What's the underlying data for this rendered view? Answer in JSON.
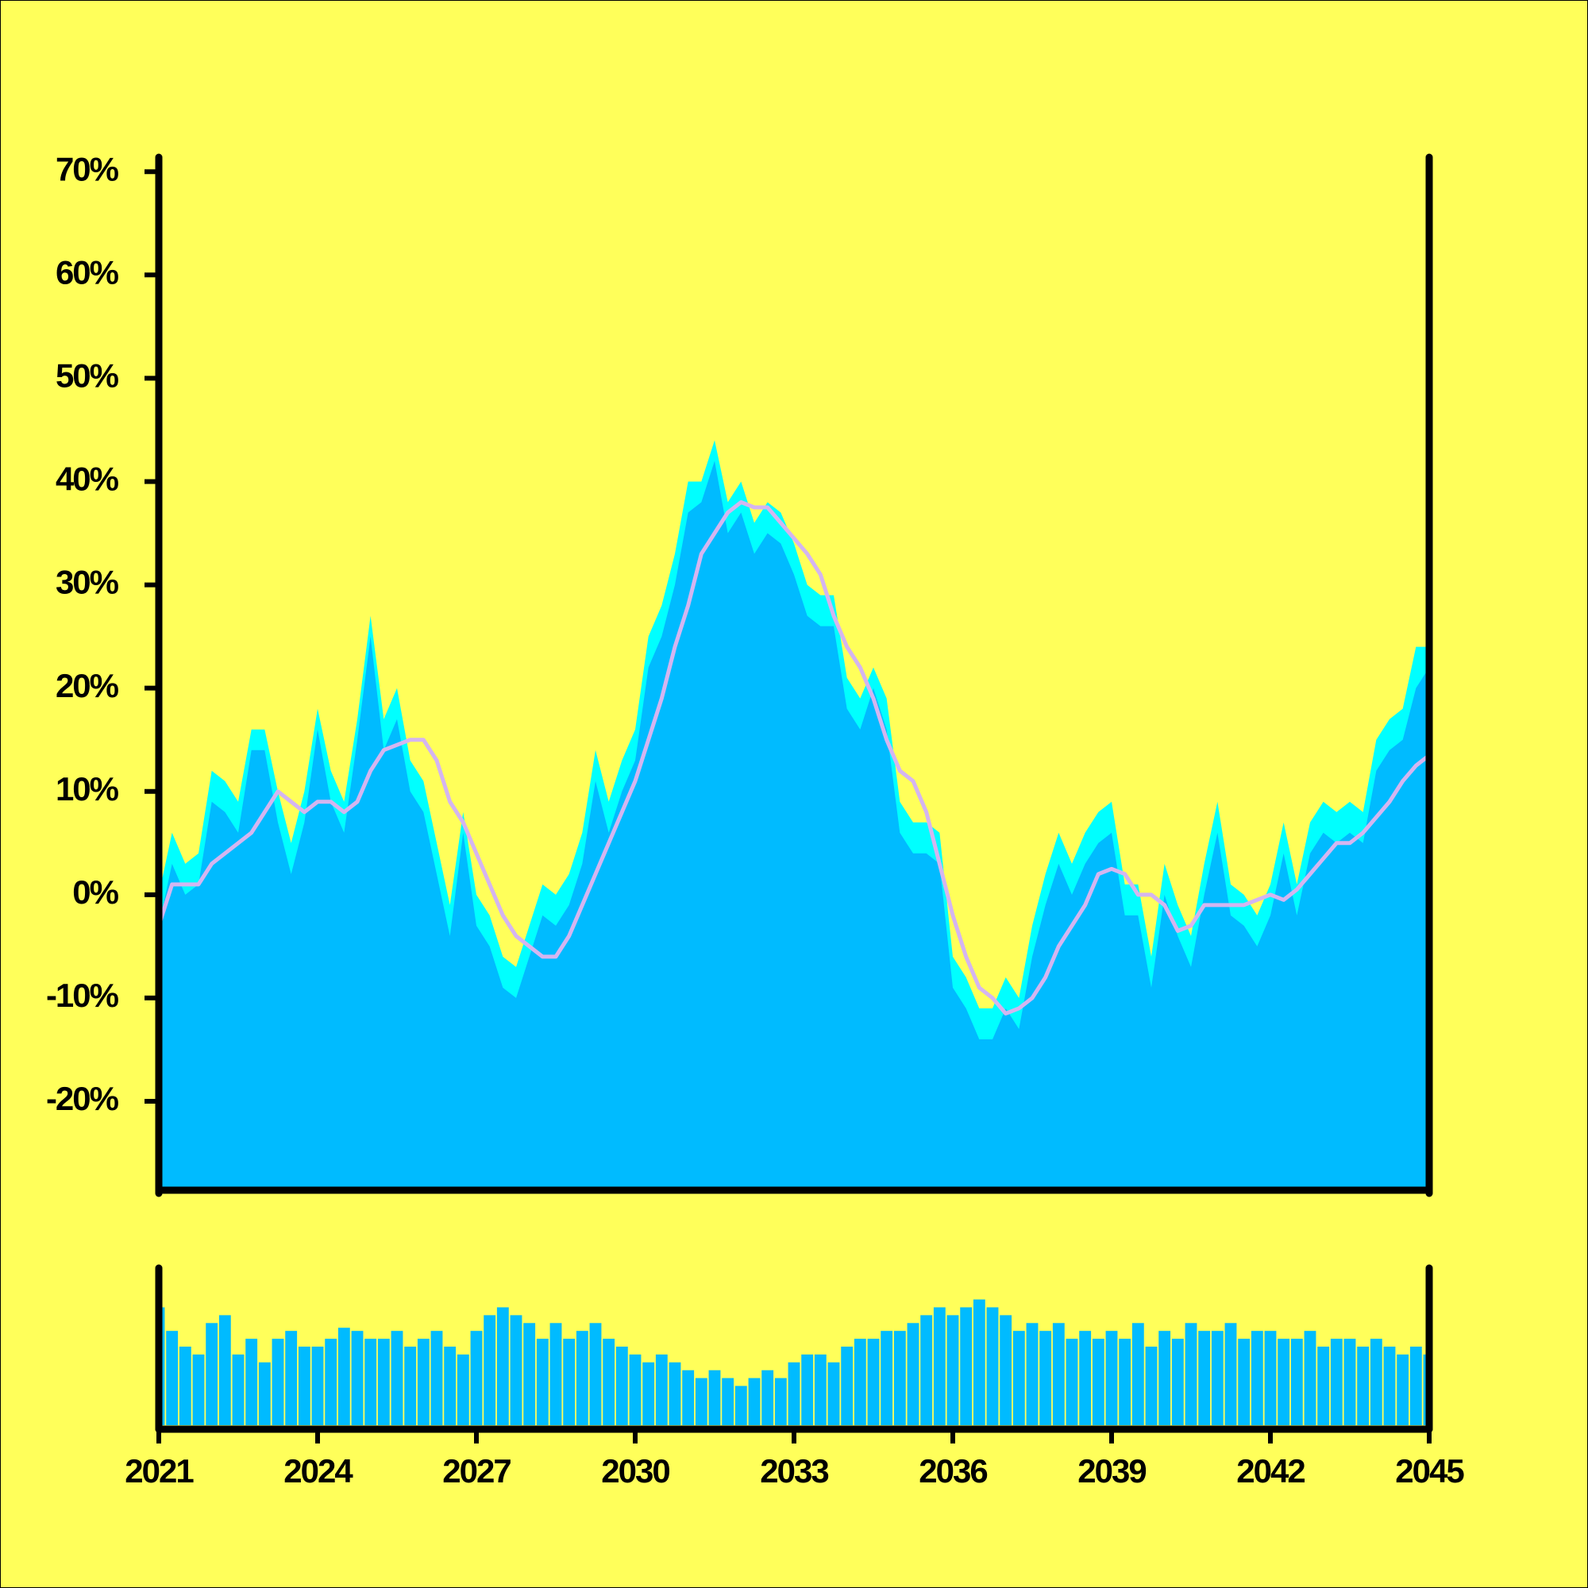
{
  "chart_data": [
    {
      "type": "area",
      "x": [
        2021,
        2021.25,
        2021.5,
        2021.75,
        2022,
        2022.25,
        2022.5,
        2022.75,
        2023,
        2023.25,
        2023.5,
        2023.75,
        2024,
        2024.25,
        2024.5,
        2024.75,
        2025,
        2025.25,
        2025.5,
        2025.75,
        2026,
        2026.25,
        2026.5,
        2026.75,
        2027,
        2027.25,
        2027.5,
        2027.75,
        2028,
        2028.25,
        2028.5,
        2028.75,
        2029,
        2029.25,
        2029.5,
        2029.75,
        2030,
        2030.25,
        2030.5,
        2030.75,
        2031,
        2031.25,
        2031.5,
        2031.75,
        2032,
        2032.25,
        2032.5,
        2032.75,
        2033,
        2033.25,
        2033.5,
        2033.75,
        2034,
        2034.25,
        2034.5,
        2034.75,
        2035,
        2035.25,
        2035.5,
        2035.75,
        2036,
        2036.25,
        2036.5,
        2036.75,
        2037,
        2037.25,
        2037.5,
        2037.75,
        2038,
        2038.25,
        2038.5,
        2038.75,
        2039,
        2039.25,
        2039.5,
        2039.75,
        2040,
        2040.25,
        2040.5,
        2040.75,
        2041,
        2041.25,
        2041.5,
        2041.75,
        2042,
        2042.25,
        2042.5,
        2042.75,
        2043,
        2043.25,
        2043.5,
        2043.75,
        2044,
        2044.25,
        2044.5,
        2044.75,
        2045
      ],
      "series": [
        {
          "type": "area",
          "color": "#00ffff",
          "values": [
            0,
            6,
            3,
            4,
            12,
            11,
            9,
            16,
            16,
            10,
            5,
            10,
            18,
            12,
            9,
            17,
            27,
            17,
            20,
            13,
            11,
            5,
            -1,
            8,
            0,
            -2,
            -6,
            -7,
            -3,
            1,
            0,
            2,
            6,
            14,
            9,
            13,
            16,
            25,
            28,
            33,
            40,
            40,
            44,
            38,
            40,
            36,
            38,
            37,
            34,
            30,
            29,
            29,
            21,
            19,
            22,
            19,
            9,
            7,
            7,
            6,
            -6,
            -8,
            -11,
            -11,
            -8,
            -10,
            -3,
            2,
            6,
            3,
            6,
            8,
            9,
            1,
            1,
            -6,
            3,
            -1,
            -4,
            3,
            9,
            1,
            0,
            -2,
            1,
            7,
            1,
            7,
            9,
            8,
            9,
            8,
            15,
            17,
            18,
            24,
            24
          ]
        },
        {
          "type": "area",
          "color": "#00bbff",
          "values": [
            -3,
            3,
            0,
            1,
            9,
            8,
            6,
            14,
            14,
            7,
            2,
            7,
            16,
            9,
            6,
            15,
            25,
            14,
            17,
            10,
            8,
            2,
            -4,
            6,
            -3,
            -5,
            -9,
            -10,
            -6,
            -2,
            -3,
            -1,
            3,
            11,
            6,
            10,
            13,
            22,
            25,
            30,
            37,
            38,
            42,
            35,
            37,
            33,
            35,
            34,
            31,
            27,
            26,
            26,
            18,
            16,
            20,
            16,
            6,
            4,
            4,
            3,
            -9,
            -11,
            -14,
            -14,
            -11,
            -13,
            -6,
            -1,
            3,
            0,
            3,
            5,
            6,
            -2,
            -2,
            -9,
            0,
            -4,
            -7,
            0,
            6,
            -2,
            -3,
            -5,
            -2,
            4,
            -2,
            4,
            6,
            5,
            6,
            5,
            12,
            14,
            15,
            20,
            22
          ]
        },
        {
          "type": "line",
          "color": "#d4b5f0",
          "values": [
            -3,
            1,
            1,
            1,
            3,
            4,
            5,
            6,
            8,
            10,
            9,
            8,
            9,
            9,
            8,
            9,
            12,
            14,
            14.5,
            15,
            15,
            13,
            9,
            7,
            4,
            1,
            -2,
            -4,
            -5,
            -6,
            -6,
            -4,
            -1,
            2,
            5,
            8,
            11,
            15,
            19,
            24,
            28,
            33,
            35,
            37,
            38,
            37.5,
            37.5,
            36,
            34.5,
            33,
            31,
            27,
            24,
            22,
            19,
            15,
            12,
            11,
            8,
            3,
            -2,
            -6,
            -9,
            -10,
            -11.5,
            -11,
            -10,
            -8,
            -5,
            -3,
            -1,
            2,
            2.5,
            2,
            0,
            0,
            -1,
            -3.5,
            -3,
            -1,
            -1,
            -1,
            -1,
            -0.5,
            0,
            -0.5,
            0.5,
            2,
            3.5,
            5,
            5,
            6,
            7.5,
            9,
            11,
            12.5,
            13.5
          ]
        }
      ],
      "xlim": [
        2021,
        2045
      ],
      "ylim": [
        -28.3,
        71.4
      ],
      "yticks": [
        {
          "value": -20,
          "label": "-20%"
        },
        {
          "value": -10,
          "label": "-10%"
        },
        {
          "value": 0,
          "label": "0%"
        },
        {
          "value": 10,
          "label": "10%"
        },
        {
          "value": 20,
          "label": "20%"
        },
        {
          "value": 30,
          "label": "30%"
        },
        {
          "value": 40,
          "label": "40%"
        },
        {
          "value": 50,
          "label": "50%"
        },
        {
          "value": 60,
          "label": "60%"
        },
        {
          "value": 70,
          "label": "70%"
        }
      ]
    },
    {
      "type": "bar",
      "color": "#00bbff",
      "values": [
        75,
        60,
        50,
        45,
        65,
        70,
        45,
        55,
        40,
        55,
        60,
        50,
        50,
        55,
        62,
        60,
        55,
        55,
        60,
        50,
        55,
        60,
        50,
        45,
        60,
        70,
        75,
        70,
        65,
        55,
        65,
        55,
        60,
        65,
        55,
        50,
        45,
        40,
        45,
        40,
        35,
        30,
        35,
        30,
        25,
        30,
        35,
        30,
        40,
        45,
        45,
        40,
        50,
        55,
        55,
        60,
        60,
        65,
        70,
        75,
        70,
        75,
        80,
        75,
        70,
        60,
        65,
        60,
        65,
        55,
        60,
        55,
        60,
        55,
        65,
        50,
        60,
        55,
        65,
        60,
        60,
        65,
        55,
        60,
        60,
        55,
        55,
        60,
        50,
        55,
        55,
        50,
        55,
        50,
        45,
        50,
        45
      ],
      "xlim": [
        2021,
        2045
      ],
      "ylim": [
        0,
        100
      ],
      "xticks": [
        2021,
        2024,
        2027,
        2030,
        2033,
        2036,
        2039,
        2042,
        2045
      ]
    }
  ]
}
